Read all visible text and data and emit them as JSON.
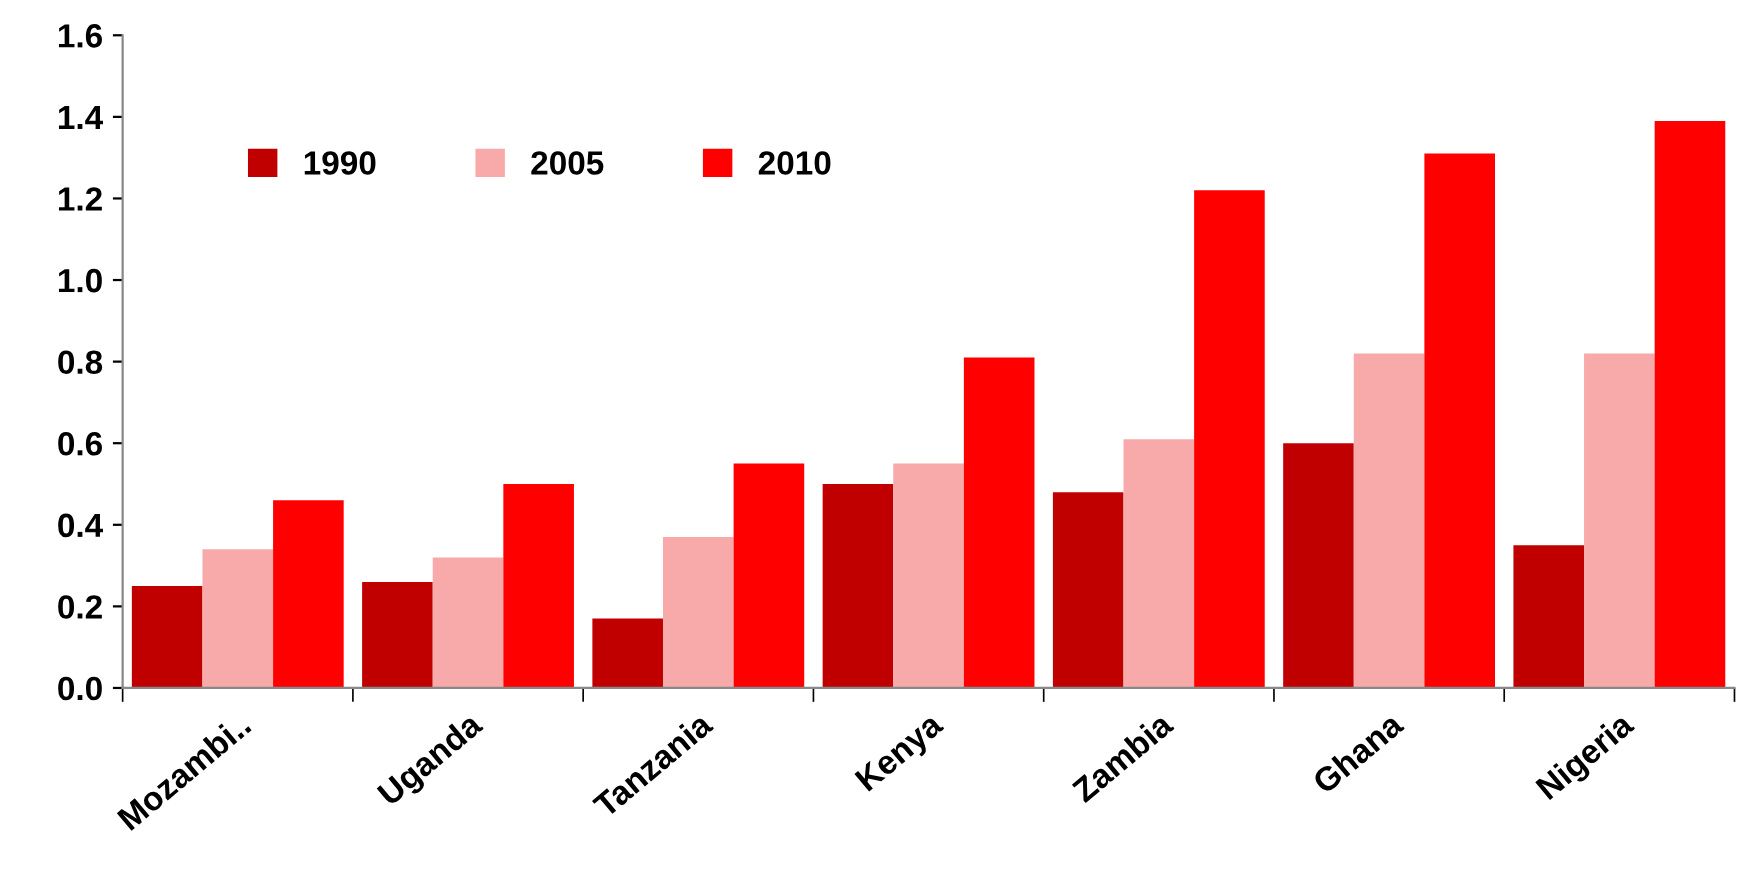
{
  "chart_data": {
    "type": "bar",
    "categories": [
      "Mozambi..",
      "Uganda",
      "Tanzania",
      "Kenya",
      "Zambia",
      "Ghana",
      "Nigeria"
    ],
    "series": [
      {
        "name": "1990",
        "color": "#c00000",
        "values": [
          0.25,
          0.26,
          0.17,
          0.5,
          0.48,
          0.6,
          0.35
        ]
      },
      {
        "name": "2005",
        "color": "#f8aaaa",
        "values": [
          0.34,
          0.32,
          0.37,
          0.55,
          0.61,
          0.82,
          0.82
        ]
      },
      {
        "name": "2010",
        "color": "#ff0000",
        "values": [
          0.46,
          0.5,
          0.55,
          0.81,
          1.22,
          1.31,
          1.39
        ]
      }
    ],
    "ylim": [
      0,
      1.6
    ],
    "yticks": [
      {
        "value": 0,
        "label": "0.0"
      },
      0.2,
      0.4,
      0.6,
      0.8,
      {
        "value": 1.0,
        "label": "1.0"
      },
      1.2,
      1.4,
      1.6
    ],
    "legend": "top left",
    "grid": false
  }
}
